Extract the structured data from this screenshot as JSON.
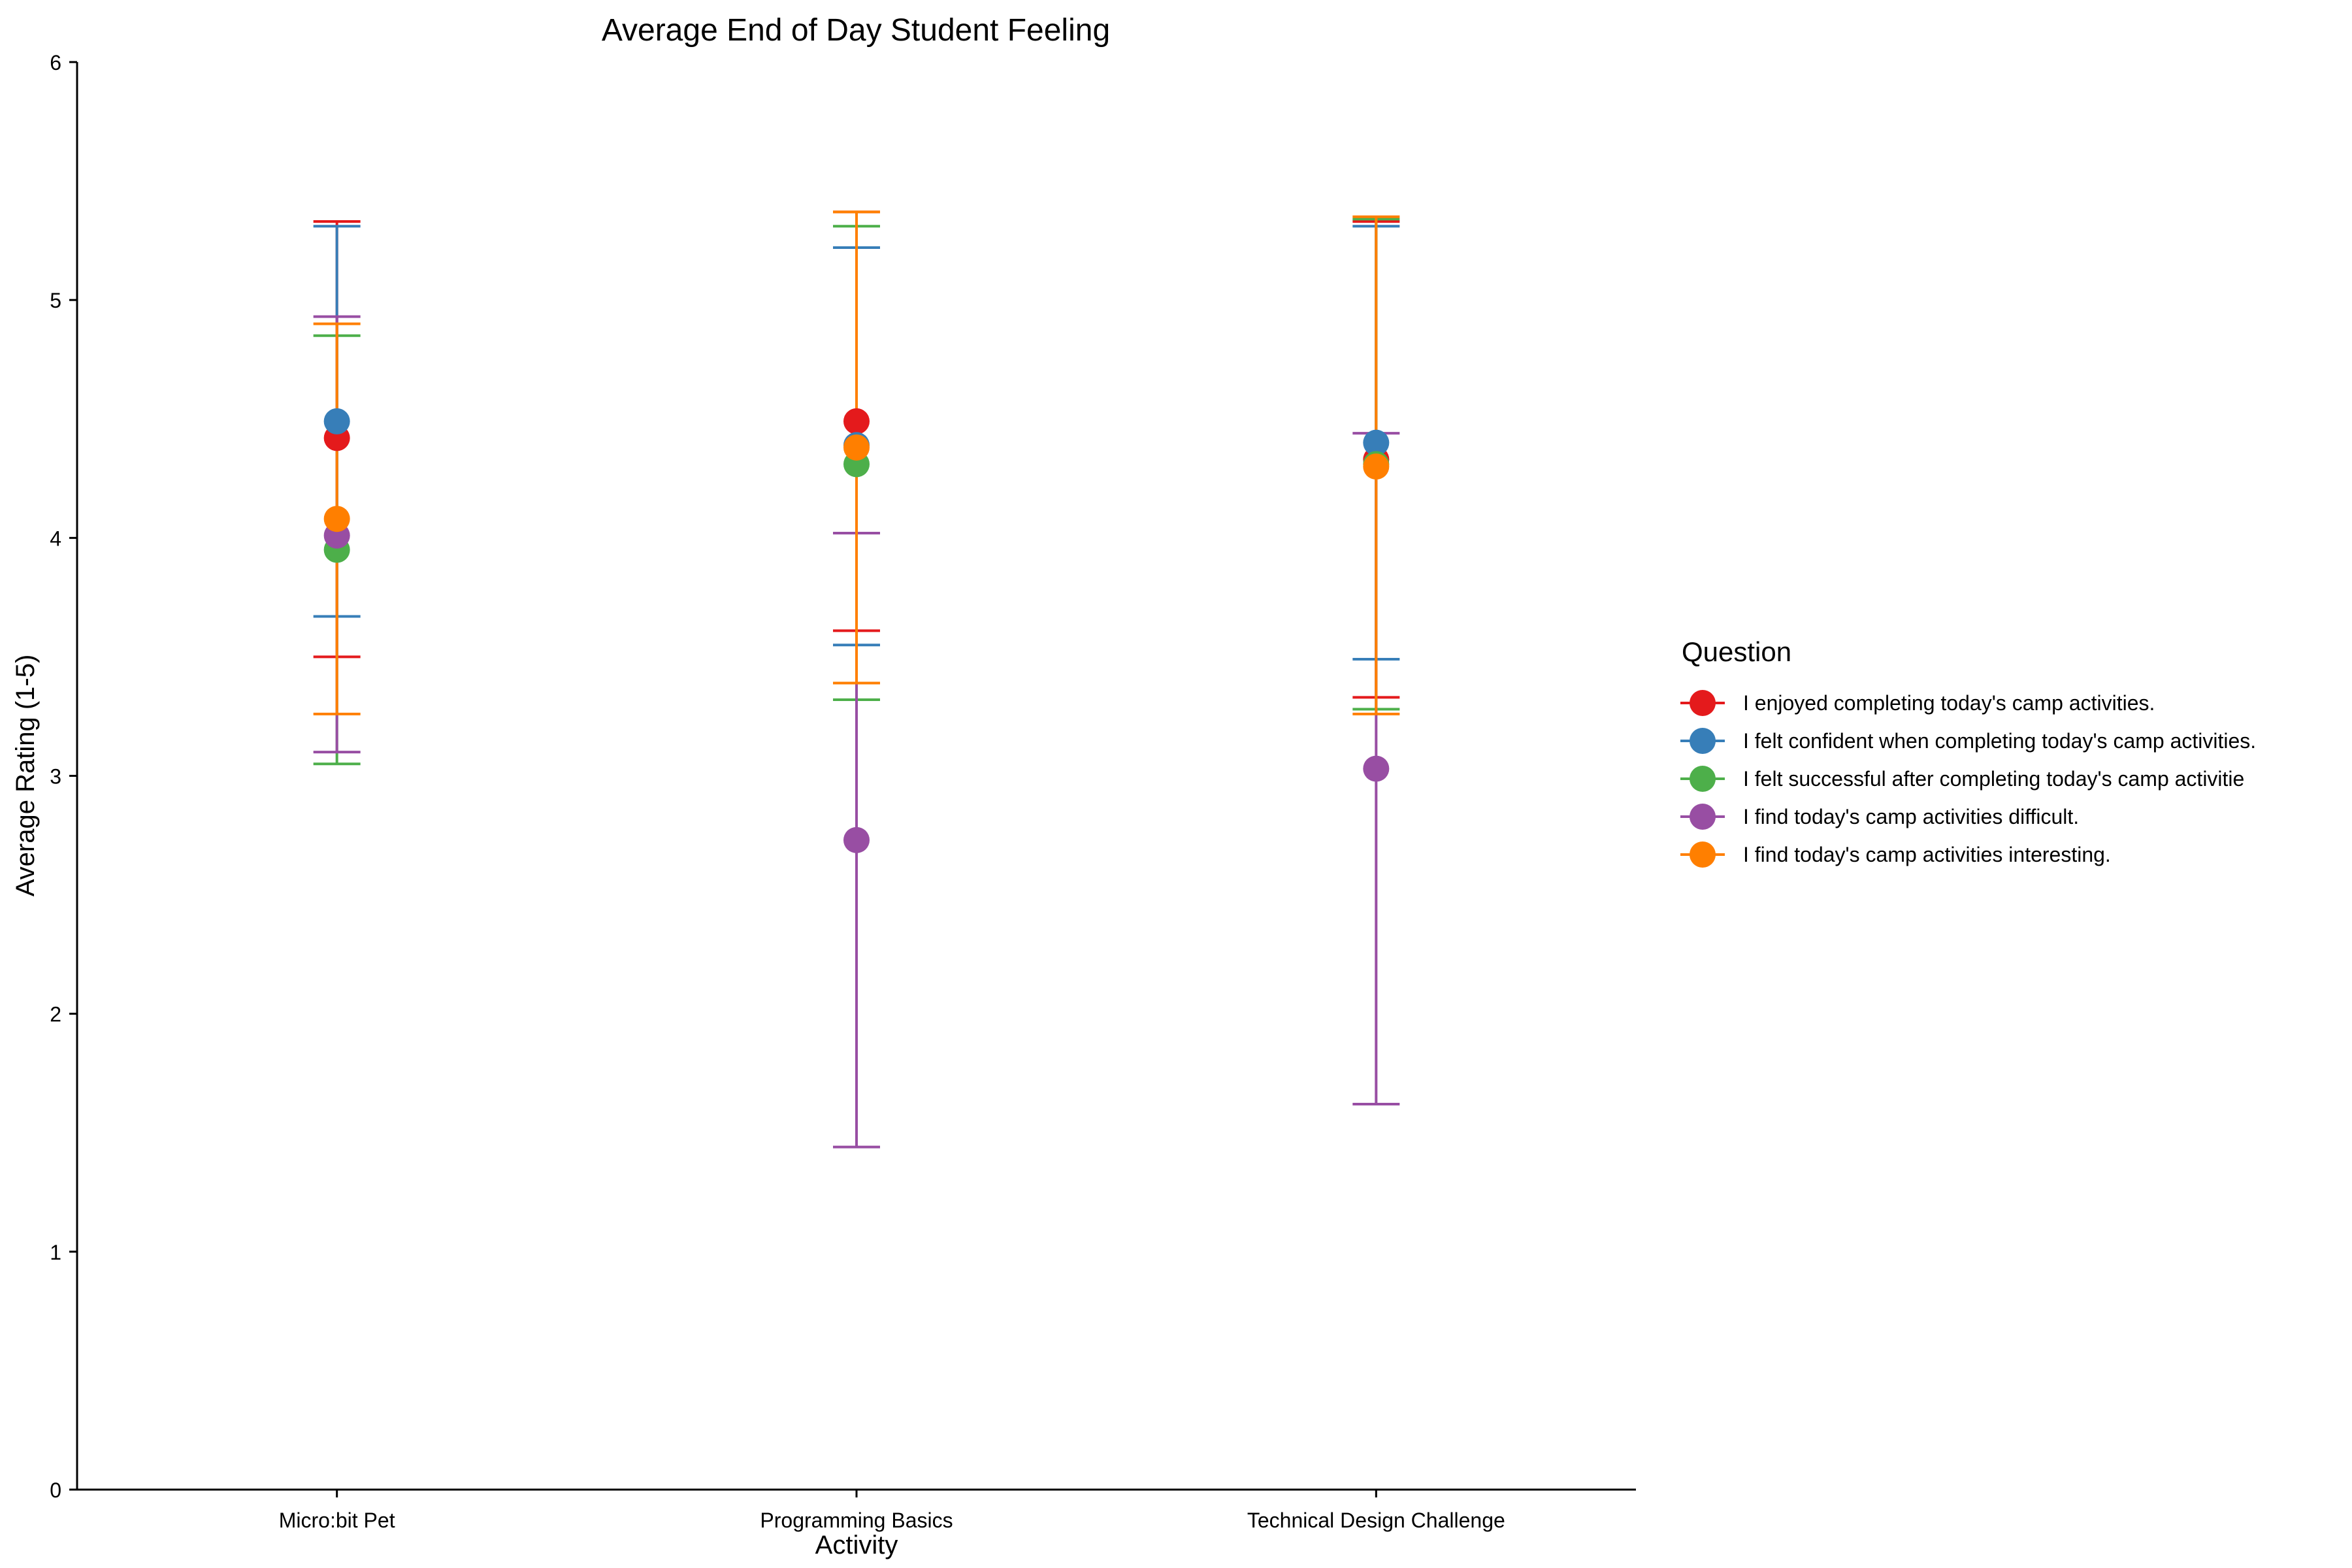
{
  "chart_data": {
    "type": "scatter",
    "title": "Average End of Day Student Feeling",
    "xlabel": "Activity",
    "ylabel": "Average Rating (1-5)",
    "ylim": [
      0,
      6
    ],
    "y_ticks": [
      "0",
      "1",
      "2",
      "3",
      "4",
      "5",
      "6"
    ],
    "categories": [
      "Micro:bit Pet",
      "Programming Basics",
      "Technical Design Challenge"
    ],
    "grid": false,
    "error_bars": true,
    "legend": {
      "title": "Question",
      "position": "right"
    },
    "series": [
      {
        "name": "I enjoyed completing today's camp activities.",
        "color": "#E41A1C",
        "values": [
          4.42,
          4.49,
          4.33
        ],
        "lower": [
          3.5,
          3.61,
          3.33
        ],
        "upper": [
          5.33,
          5.37,
          5.33
        ]
      },
      {
        "name": "I felt confident when completing today's camp activities.",
        "color": "#377EB8",
        "values": [
          4.49,
          4.39,
          4.4
        ],
        "lower": [
          3.67,
          3.55,
          3.49
        ],
        "upper": [
          5.31,
          5.22,
          5.31
        ]
      },
      {
        "name": "I felt successful after completing today's camp activitie",
        "color": "#4DAF4A",
        "values": [
          3.95,
          4.31,
          4.31
        ],
        "lower": [
          3.05,
          3.32,
          3.28
        ],
        "upper": [
          4.85,
          5.31,
          5.34
        ]
      },
      {
        "name": "I find today's camp activities difficult.",
        "color": "#984EA3",
        "values": [
          4.01,
          2.73,
          3.03
        ],
        "lower": [
          3.1,
          1.44,
          1.62
        ],
        "upper": [
          4.93,
          4.02,
          4.44
        ]
      },
      {
        "name": "I find today's camp activities interesting.",
        "color": "#FF7F00",
        "values": [
          4.08,
          4.38,
          4.3
        ],
        "lower": [
          3.26,
          3.39,
          3.26
        ],
        "upper": [
          4.9,
          5.37,
          5.35
        ]
      }
    ]
  }
}
